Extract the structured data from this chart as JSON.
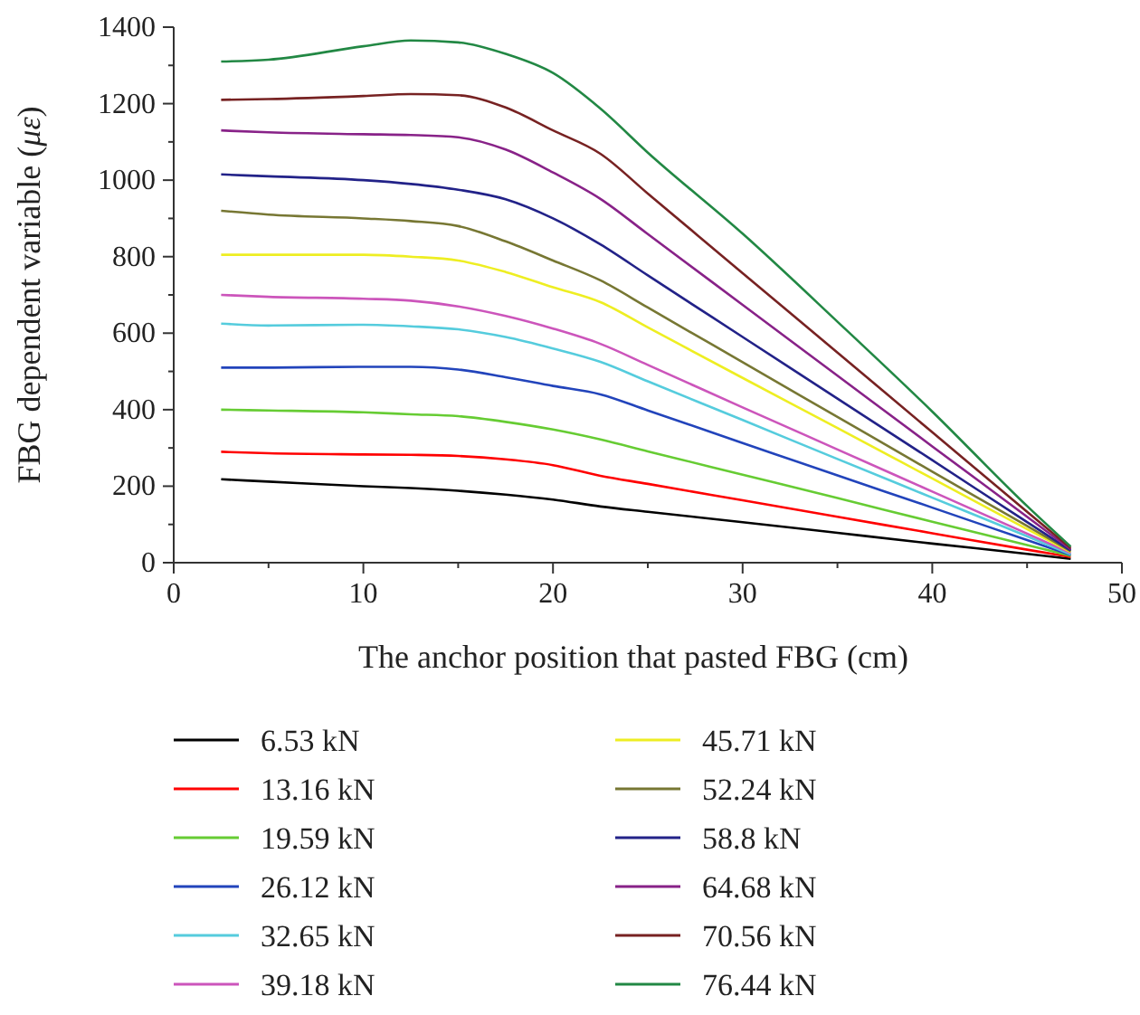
{
  "chart_data": {
    "type": "line",
    "xlabel": "The anchor position that pasted FBG (cm)",
    "ylabel": "FBG dependent variable (με)",
    "xlim": [
      0,
      50
    ],
    "xticks": [
      0,
      10,
      20,
      30,
      40,
      50
    ],
    "ylim": [
      0,
      1400
    ],
    "yticks": [
      0,
      200,
      400,
      600,
      800,
      1000,
      1200,
      1400
    ],
    "legend": "bottom",
    "grid": false,
    "marker": "none",
    "line_style": "solid",
    "x": [
      2.5,
      5,
      10,
      12.5,
      15,
      17.5,
      20,
      22.5,
      25,
      30,
      35,
      40,
      45,
      47.3
    ],
    "series": [
      {
        "name": "6.53 kN",
        "color": "#000000",
        "values": [
          218,
          212,
          200,
          195,
          188,
          178,
          165,
          147,
          133,
          106,
          78,
          50,
          23,
          10
        ]
      },
      {
        "name": "13.16 kN",
        "color": "#ff0000",
        "values": [
          290,
          286,
          283,
          282,
          279,
          270,
          255,
          227,
          206,
          163,
          120,
          77,
          34,
          15
        ]
      },
      {
        "name": "19.59 kN",
        "color": "#66cc33",
        "values": [
          400,
          398,
          393,
          388,
          383,
          368,
          348,
          322,
          291,
          230,
          169,
          107,
          46,
          18
        ]
      },
      {
        "name": "26.12 kN",
        "color": "#2244bb",
        "values": [
          510,
          510,
          512,
          512,
          505,
          485,
          462,
          440,
          398,
          313,
          228,
          144,
          59,
          20
        ]
      },
      {
        "name": "32.65 kN",
        "color": "#55ccdd",
        "values": [
          625,
          620,
          622,
          618,
          610,
          590,
          560,
          525,
          474,
          373,
          271,
          170,
          69,
          22
        ]
      },
      {
        "name": "39.18 kN",
        "color": "#cc55bb",
        "values": [
          700,
          695,
          690,
          685,
          670,
          645,
          612,
          572,
          517,
          406,
          296,
          186,
          76,
          25
        ]
      },
      {
        "name": "45.71 kN",
        "color": "#eeee22",
        "values": [
          805,
          805,
          805,
          800,
          790,
          760,
          720,
          681,
          615,
          483,
          352,
          220,
          88,
          28
        ]
      },
      {
        "name": "52.24 kN",
        "color": "#777733",
        "values": [
          920,
          910,
          900,
          893,
          880,
          840,
          790,
          738,
          667,
          524,
          381,
          238,
          96,
          30
        ]
      },
      {
        "name": "58.8 kN",
        "color": "#222288",
        "values": [
          1015,
          1010,
          1000,
          990,
          975,
          950,
          900,
          832,
          751,
          590,
          429,
          268,
          106,
          32
        ]
      },
      {
        "name": "64.68 kN",
        "color": "#882288",
        "values": [
          1130,
          1125,
          1120,
          1118,
          1112,
          1080,
          1020,
          951,
          859,
          674,
          489,
          304,
          120,
          35
        ]
      },
      {
        "name": "70.56 kN",
        "color": "#772222",
        "values": [
          1210,
          1212,
          1220,
          1225,
          1222,
          1190,
          1130,
          1069,
          965,
          757,
          549,
          341,
          133,
          38
        ]
      },
      {
        "name": "76.44 kN",
        "color": "#228844",
        "values": [
          1310,
          1315,
          1350,
          1365,
          1360,
          1330,
          1280,
          1187,
          1072,
          860,
          630,
          395,
          148,
          42
        ]
      }
    ]
  }
}
